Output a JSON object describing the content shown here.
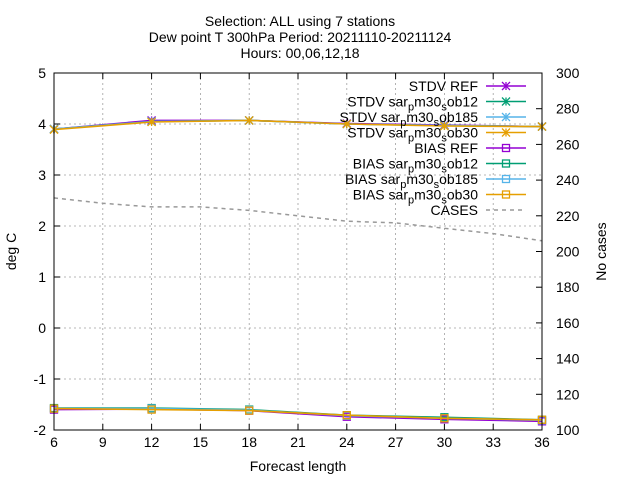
{
  "chart_data": {
    "type": "line",
    "title_lines": [
      "Selection: ALL using      7 stations",
      "Dew point T 300hPa   Period: 20211110-20211124",
      "Hours: 00,06,12,18"
    ],
    "xlabel": "Forecast length",
    "ylabel": "deg C",
    "y2label": "No cases",
    "x_ticks": [
      6,
      9,
      12,
      15,
      18,
      21,
      24,
      27,
      30,
      33,
      36
    ],
    "y_ticks": [
      -2,
      -1,
      0,
      1,
      2,
      3,
      4,
      5
    ],
    "y2_ticks": [
      100,
      120,
      140,
      160,
      180,
      200,
      220,
      240,
      260,
      280,
      300
    ],
    "xlim": [
      6,
      36
    ],
    "ylim": [
      -2,
      5
    ],
    "y2lim": [
      100,
      300
    ],
    "grid": true,
    "legend_position": "top-right",
    "x": [
      6,
      12,
      18,
      24,
      30,
      36
    ],
    "series": [
      {
        "name": "STDV REF",
        "axis": "y",
        "color": "#9400d3",
        "dash": "",
        "marker": "star",
        "values": [
          3.9,
          4.07,
          4.07,
          4.01,
          3.98,
          3.95
        ]
      },
      {
        "name": "STDV sar_pm30_sob12",
        "axis": "y",
        "color": "#009e73",
        "dash": "",
        "marker": "star",
        "values": [
          3.9,
          4.05,
          4.07,
          4.0,
          3.97,
          3.95
        ]
      },
      {
        "name": "STDV sar_pm30_sob185",
        "axis": "y",
        "color": "#56b4e9",
        "dash": "",
        "marker": "star",
        "values": [
          3.9,
          4.05,
          4.07,
          4.0,
          3.97,
          3.95
        ]
      },
      {
        "name": "STDV sar_pm30_sob30",
        "axis": "y",
        "color": "#e69f00",
        "dash": "",
        "marker": "star",
        "values": [
          3.89,
          4.04,
          4.07,
          4.0,
          3.96,
          3.95
        ]
      },
      {
        "name": "BIAS REF",
        "axis": "y",
        "color": "#9400d3",
        "dash": "",
        "marker": "square",
        "values": [
          -1.6,
          -1.59,
          -1.62,
          -1.74,
          -1.79,
          -1.83
        ]
      },
      {
        "name": "BIAS sar_pm30_sob12",
        "axis": "y",
        "color": "#009e73",
        "dash": "",
        "marker": "square",
        "values": [
          -1.57,
          -1.57,
          -1.6,
          -1.71,
          -1.75,
          -1.8
        ]
      },
      {
        "name": "BIAS sar_pm30_sob185",
        "axis": "y",
        "color": "#56b4e9",
        "dash": "",
        "marker": "square",
        "values": [
          -1.58,
          -1.58,
          -1.61,
          -1.72,
          -1.77,
          -1.81
        ]
      },
      {
        "name": "BIAS sar_pm30_sob30",
        "axis": "y",
        "color": "#e69f00",
        "dash": "",
        "marker": "square",
        "values": [
          -1.58,
          -1.6,
          -1.62,
          -1.71,
          -1.77,
          -1.8
        ]
      },
      {
        "name": "CASES",
        "axis": "y2",
        "color": "#999999",
        "dash": "4,4",
        "marker": "none",
        "x": [
          6,
          9,
          12,
          15,
          18,
          21,
          24,
          27,
          30,
          33,
          36
        ],
        "values": [
          230,
          227,
          225,
          225,
          223,
          220,
          217,
          216,
          213,
          210,
          206
        ]
      }
    ]
  }
}
